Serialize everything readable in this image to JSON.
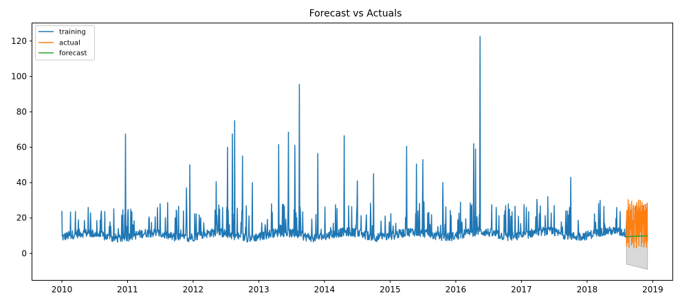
{
  "chart_data": {
    "type": "line",
    "title": "Forecast vs Actuals",
    "xlabel": "",
    "ylabel": "",
    "xlim": [
      2009.55,
      2019.3
    ],
    "ylim": [
      -15,
      130
    ],
    "x_ticks": [
      2010,
      2011,
      2012,
      2013,
      2014,
      2015,
      2016,
      2017,
      2018,
      2019
    ],
    "x_tick_labels": [
      "2010",
      "2011",
      "2012",
      "2013",
      "2014",
      "2015",
      "2016",
      "2017",
      "2018",
      "2019"
    ],
    "y_ticks": [
      0,
      20,
      40,
      60,
      80,
      100,
      120
    ],
    "y_tick_labels": [
      "0",
      "20",
      "40",
      "60",
      "80",
      "100",
      "120"
    ],
    "grid": false,
    "legend_position": "top-left",
    "colors": {
      "training": "#1f77b4",
      "actual": "#ff7f0e",
      "forecast": "#2ca02c",
      "band": "#d9d9d9"
    },
    "series": [
      {
        "name": "training",
        "x_start": 2010.0,
        "x_end": 2018.6,
        "baseline": 6,
        "spikes": [
          [
            2010.0,
            24
          ],
          [
            2010.25,
            19
          ],
          [
            2010.4,
            26
          ],
          [
            2010.6,
            24
          ],
          [
            2010.97,
            67.5
          ],
          [
            2011.05,
            25
          ],
          [
            2011.9,
            37
          ],
          [
            2011.95,
            50
          ],
          [
            2012.35,
            40.5
          ],
          [
            2012.45,
            26
          ],
          [
            2012.52,
            60
          ],
          [
            2012.6,
            67.5
          ],
          [
            2012.63,
            75
          ],
          [
            2012.75,
            55
          ],
          [
            2012.9,
            40
          ],
          [
            2013.3,
            61.5
          ],
          [
            2013.45,
            68.5
          ],
          [
            2013.55,
            61
          ],
          [
            2013.62,
            95.5
          ],
          [
            2013.9,
            56.5
          ],
          [
            2014.3,
            66.5
          ],
          [
            2014.5,
            41
          ],
          [
            2014.75,
            45
          ],
          [
            2015.25,
            60.5
          ],
          [
            2015.4,
            50.5
          ],
          [
            2015.5,
            53
          ],
          [
            2015.8,
            40
          ],
          [
            2016.27,
            62
          ],
          [
            2016.3,
            59
          ],
          [
            2016.37,
            122.5
          ],
          [
            2016.8,
            28
          ],
          [
            2017.4,
            32
          ],
          [
            2017.75,
            43
          ],
          [
            2018.2,
            30
          ],
          [
            2018.45,
            26
          ]
        ]
      },
      {
        "name": "actual",
        "x_start": 2018.6,
        "x_end": 2018.92,
        "min": 3,
        "max": 30.5
      },
      {
        "name": "forecast",
        "x": [
          2018.6,
          2018.92
        ],
        "y": [
          9.5,
          10
        ],
        "band_upper": [
          24,
          28
        ],
        "band_lower": [
          -6,
          -9
        ]
      }
    ]
  }
}
